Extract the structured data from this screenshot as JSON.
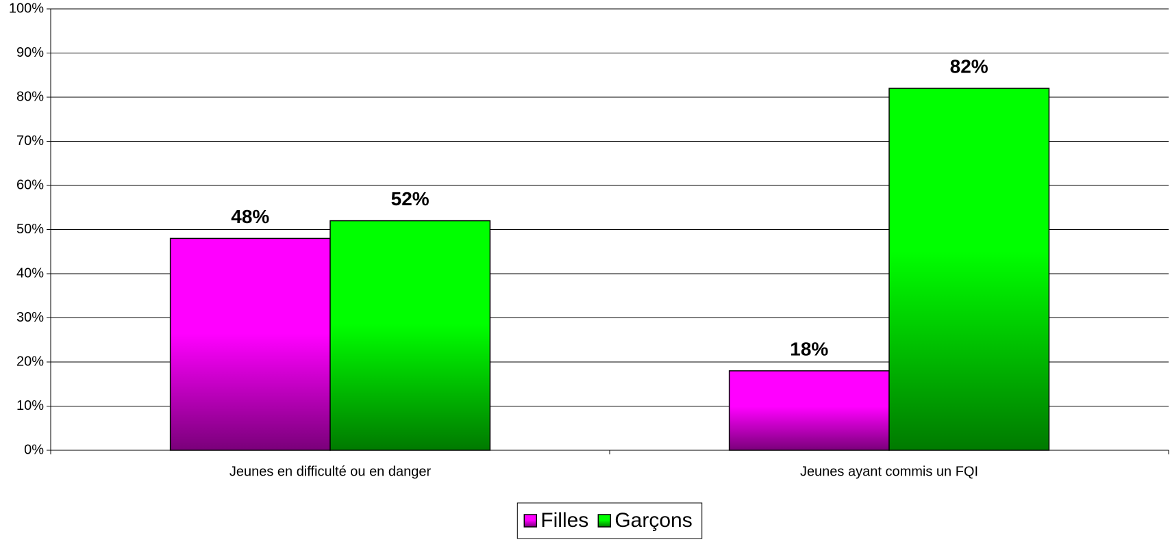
{
  "chart_data": {
    "type": "bar",
    "categories": [
      "Jeunes en difficulté ou en danger",
      "Jeunes ayant commis un FQI"
    ],
    "series": [
      {
        "name": "Filles",
        "color": "#ff00ff",
        "values": [
          48,
          18
        ],
        "value_labels": [
          "48%",
          "18%"
        ]
      },
      {
        "name": "Garçons",
        "color": "#00ff00",
        "values": [
          52,
          82
        ],
        "value_labels": [
          "52%",
          "82%"
        ]
      }
    ],
    "ylim": [
      0,
      100
    ],
    "yticks": [
      {
        "value": 0,
        "label": "0%"
      },
      {
        "value": 10,
        "label": "10%"
      },
      {
        "value": 20,
        "label": "20%"
      },
      {
        "value": 30,
        "label": "30%"
      },
      {
        "value": 40,
        "label": "40%"
      },
      {
        "value": 50,
        "label": "50%"
      },
      {
        "value": 60,
        "label": "60%"
      },
      {
        "value": 70,
        "label": "70%"
      },
      {
        "value": 80,
        "label": "80%"
      },
      {
        "value": 90,
        "label": "90%"
      },
      {
        "value": 100,
        "label": "100%"
      }
    ],
    "grid": true,
    "legend": "bottom"
  }
}
